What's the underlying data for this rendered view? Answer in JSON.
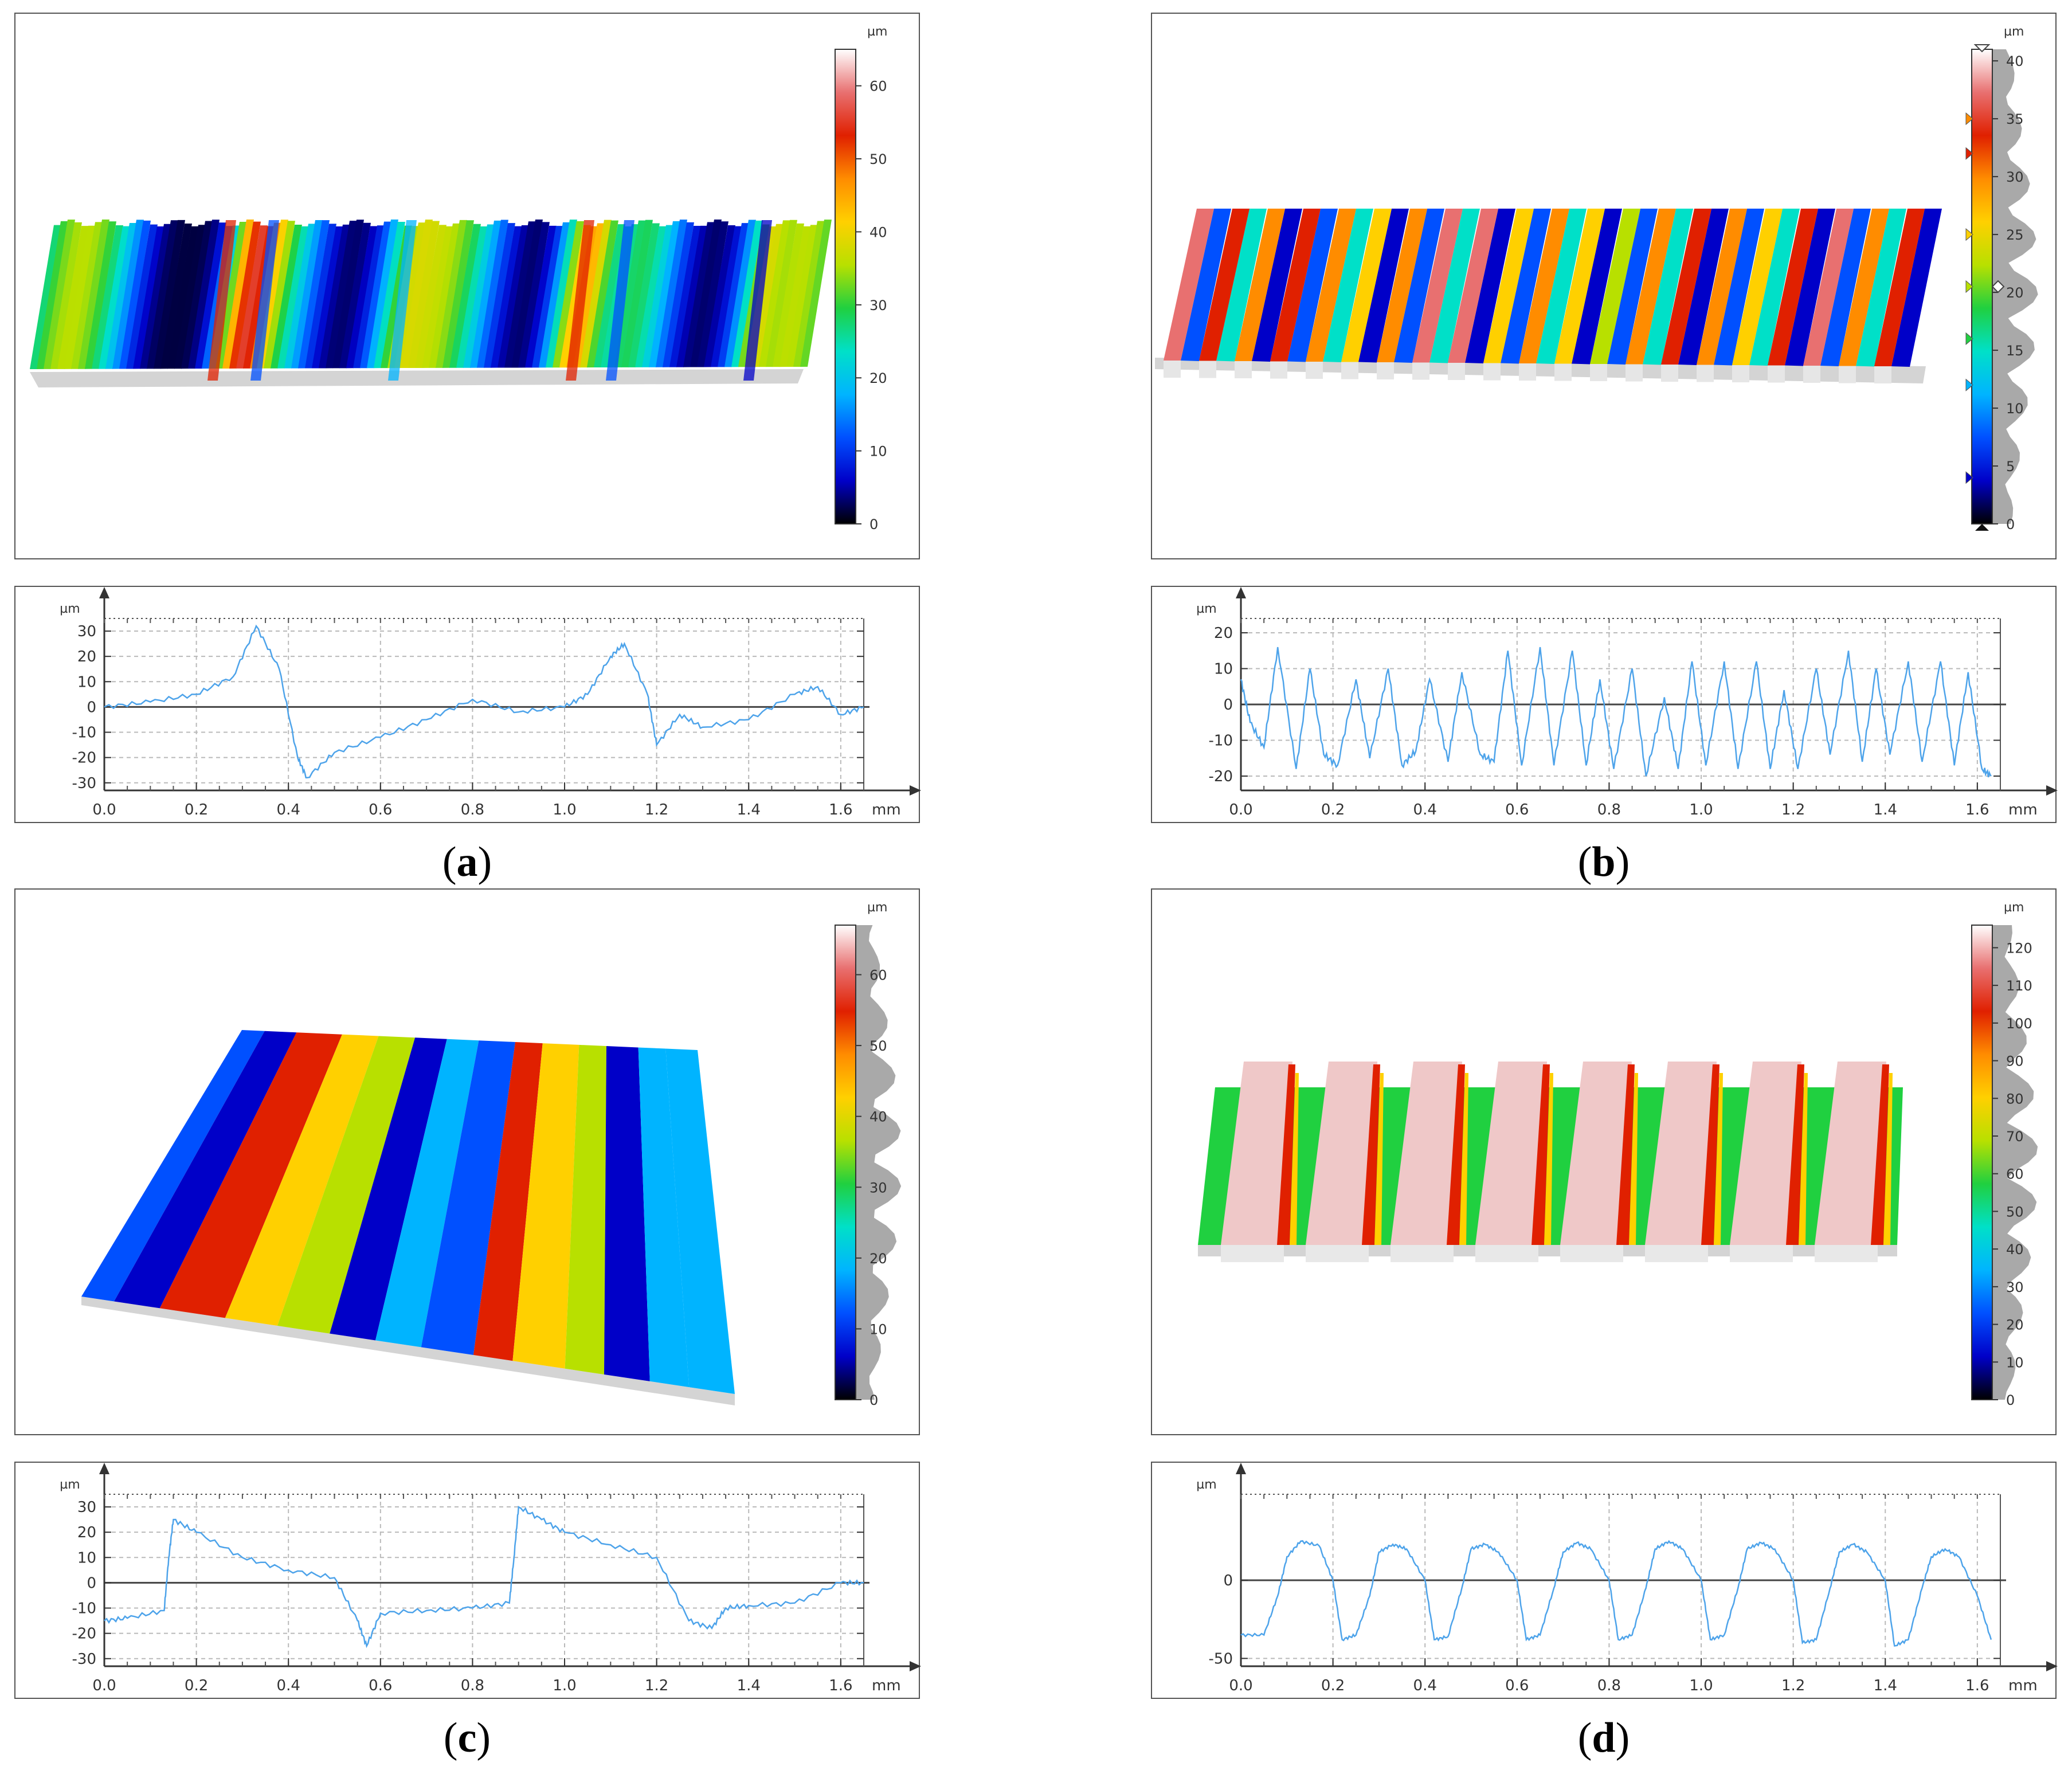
{
  "colors": {
    "profile_line": "#4da3ea",
    "axis": "#333333",
    "grid": "#b9b9b9",
    "colorbar_stops": [
      "#000000",
      "#0000c8",
      "#0050ff",
      "#00b4ff",
      "#00e0c8",
      "#20d040",
      "#b8e000",
      "#ffd000",
      "#ff8c00",
      "#e02000",
      "#e87070",
      "#ffffff"
    ]
  },
  "panels": [
    {
      "id": "a",
      "label": "a",
      "surface": {
        "kind": "rough-ridges",
        "unit": "µm",
        "colorbar_ticks": [
          0,
          10,
          20,
          30,
          40,
          50,
          60
        ],
        "colorbar_max": 65,
        "histogram": false,
        "markers": false
      },
      "chart_data": {
        "type": "line",
        "xunit": "mm",
        "yunit": "µm",
        "xlim": [
          0,
          1.65
        ],
        "ylim": [
          -33,
          35
        ],
        "xticks": [
          0.0,
          0.2,
          0.4,
          0.6,
          0.8,
          1.0,
          1.2,
          1.4,
          1.6
        ],
        "xtick_labels": [
          "0.0",
          "0.2",
          "0.4",
          "0.6",
          "0.8",
          "1.0",
          "1.2",
          "1.4",
          "1.6"
        ],
        "yticks": [
          -30,
          -20,
          -10,
          0,
          10,
          20,
          30
        ],
        "ytick_labels": [
          "-30",
          "-20",
          "-10",
          "0",
          "10",
          "20",
          "30"
        ],
        "series": [
          {
            "x": [
              0,
              0.1,
              0.2,
              0.28,
              0.33,
              0.38,
              0.42,
              0.44,
              0.5,
              0.6,
              0.7,
              0.8,
              0.9,
              1.0,
              1.05,
              1.1,
              1.13,
              1.18,
              1.2,
              1.25,
              1.3,
              1.4,
              1.5,
              1.55,
              1.6,
              1.65
            ],
            "y": [
              0,
              2,
              5,
              12,
              32,
              15,
              -20,
              -28,
              -18,
              -12,
              -5,
              3,
              -2,
              0,
              5,
              20,
              25,
              5,
              -15,
              -3,
              -8,
              -5,
              5,
              8,
              -3,
              0
            ]
          }
        ]
      }
    },
    {
      "id": "b",
      "label": "b",
      "surface": {
        "kind": "regular-ribs",
        "unit": "µm",
        "colorbar_ticks": [
          0,
          5,
          10,
          15,
          20,
          25,
          30,
          35,
          40
        ],
        "colorbar_max": 41,
        "histogram": true,
        "markers": true
      },
      "chart_data": {
        "type": "line",
        "xunit": "mm",
        "yunit": "µm",
        "xlim": [
          0,
          1.65
        ],
        "ylim": [
          -24,
          24
        ],
        "xticks": [
          0.0,
          0.2,
          0.4,
          0.6,
          0.8,
          1.0,
          1.2,
          1.4,
          1.6
        ],
        "xtick_labels": [
          "0.0",
          "0.2",
          "0.4",
          "0.6",
          "0.8",
          "1.0",
          "1.2",
          "1.4",
          "1.6"
        ],
        "yticks": [
          -20,
          -10,
          0,
          10,
          20
        ],
        "ytick_labels": [
          "-20",
          "-10",
          "0",
          "10",
          "20"
        ],
        "series": [
          {
            "x": [
              0,
              0.02,
              0.05,
              0.08,
              0.12,
              0.15,
              0.18,
              0.21,
              0.25,
              0.28,
              0.32,
              0.35,
              0.38,
              0.41,
              0.45,
              0.48,
              0.52,
              0.55,
              0.58,
              0.61,
              0.65,
              0.68,
              0.72,
              0.75,
              0.78,
              0.81,
              0.85,
              0.88,
              0.92,
              0.95,
              0.98,
              1.01,
              1.05,
              1.08,
              1.12,
              1.15,
              1.18,
              1.21,
              1.25,
              1.28,
              1.32,
              1.35,
              1.38,
              1.41,
              1.45,
              1.48,
              1.52,
              1.55,
              1.58,
              1.61,
              1.63
            ],
            "y": [
              7,
              -5,
              -12,
              16,
              -18,
              10,
              -14,
              -17,
              7,
              -15,
              10,
              -17,
              -13,
              7,
              -16,
              9,
              -14,
              -16,
              15,
              -17,
              16,
              -17,
              15,
              -17,
              7,
              -18,
              10,
              -20,
              2,
              -18,
              12,
              -17,
              12,
              -18,
              12,
              -18,
              4,
              -18,
              10,
              -14,
              15,
              -16,
              10,
              -14,
              12,
              -16,
              12,
              -17,
              9,
              -18,
              -20
            ]
          }
        ]
      }
    },
    {
      "id": "c",
      "label": "c",
      "surface": {
        "kind": "tilted-ridges",
        "unit": "µm",
        "colorbar_ticks": [
          0,
          10,
          20,
          30,
          40,
          50,
          60
        ],
        "colorbar_max": 67,
        "histogram": true,
        "markers": false
      },
      "chart_data": {
        "type": "line",
        "xunit": "mm",
        "yunit": "µm",
        "xlim": [
          0,
          1.65
        ],
        "ylim": [
          -33,
          35
        ],
        "xticks": [
          0.0,
          0.2,
          0.4,
          0.6,
          0.8,
          1.0,
          1.2,
          1.4,
          1.6
        ],
        "xtick_labels": [
          "0.0",
          "0.2",
          "0.4",
          "0.6",
          "0.8",
          "1.0",
          "1.2",
          "1.4",
          "1.6"
        ],
        "yticks": [
          -30,
          -20,
          -10,
          0,
          10,
          20,
          30
        ],
        "ytick_labels": [
          "-30",
          "-20",
          "-10",
          "0",
          "10",
          "20",
          "30"
        ],
        "series": [
          {
            "x": [
              0,
              0.05,
              0.13,
              0.14,
              0.15,
              0.2,
              0.3,
              0.4,
              0.5,
              0.55,
              0.57,
              0.6,
              0.7,
              0.8,
              0.88,
              0.89,
              0.9,
              0.95,
              1.0,
              1.1,
              1.2,
              1.27,
              1.32,
              1.35,
              1.4,
              1.5,
              1.6,
              1.65
            ],
            "y": [
              -15,
              -14,
              -11,
              10,
              25,
              20,
              10,
              5,
              2,
              -15,
              -25,
              -12,
              -11,
              -10,
              -8,
              10,
              30,
              25,
              20,
              15,
              10,
              -15,
              -18,
              -10,
              -9,
              -8,
              0,
              0
            ]
          }
        ]
      }
    },
    {
      "id": "d",
      "label": "d",
      "surface": {
        "kind": "wide-ribs",
        "unit": "µm",
        "colorbar_ticks": [
          0,
          10,
          20,
          30,
          40,
          50,
          60,
          70,
          80,
          90,
          100,
          110,
          120
        ],
        "colorbar_max": 126,
        "histogram": true,
        "markers": false
      },
      "chart_data": {
        "type": "line",
        "xunit": "mm",
        "yunit": "µm",
        "xlim": [
          0,
          1.65
        ],
        "ylim": [
          -55,
          55
        ],
        "xticks": [
          0.0,
          0.2,
          0.4,
          0.6,
          0.8,
          1.0,
          1.2,
          1.4,
          1.6
        ],
        "xtick_labels": [
          "0.0",
          "0.2",
          "0.4",
          "0.6",
          "0.8",
          "1.0",
          "1.2",
          "1.4",
          "1.6"
        ],
        "yticks": [
          -50,
          0
        ],
        "ytick_labels": [
          "-50",
          "0"
        ],
        "series": [
          {
            "x": [
              0,
              0.05,
              0.08,
              0.1,
              0.13,
              0.17,
              0.2,
              0.22,
              0.25,
              0.28,
              0.3,
              0.33,
              0.36,
              0.4,
              0.42,
              0.45,
              0.48,
              0.5,
              0.53,
              0.56,
              0.6,
              0.62,
              0.65,
              0.68,
              0.7,
              0.73,
              0.76,
              0.8,
              0.82,
              0.85,
              0.88,
              0.9,
              0.93,
              0.96,
              1.0,
              1.02,
              1.05,
              1.08,
              1.1,
              1.13,
              1.16,
              1.2,
              1.22,
              1.25,
              1.28,
              1.3,
              1.33,
              1.36,
              1.4,
              1.42,
              1.45,
              1.48,
              1.5,
              1.53,
              1.56,
              1.6,
              1.63
            ],
            "y": [
              -35,
              -35,
              -10,
              15,
              25,
              22,
              0,
              -38,
              -35,
              -10,
              18,
              23,
              20,
              0,
              -38,
              -36,
              -5,
              20,
              23,
              18,
              0,
              -38,
              -35,
              -5,
              18,
              24,
              20,
              0,
              -38,
              -35,
              -5,
              20,
              25,
              20,
              0,
              -38,
              -35,
              -5,
              20,
              24,
              20,
              0,
              -40,
              -38,
              -5,
              18,
              23,
              18,
              0,
              -42,
              -38,
              -5,
              15,
              20,
              15,
              -10,
              -38
            ]
          }
        ]
      }
    }
  ]
}
